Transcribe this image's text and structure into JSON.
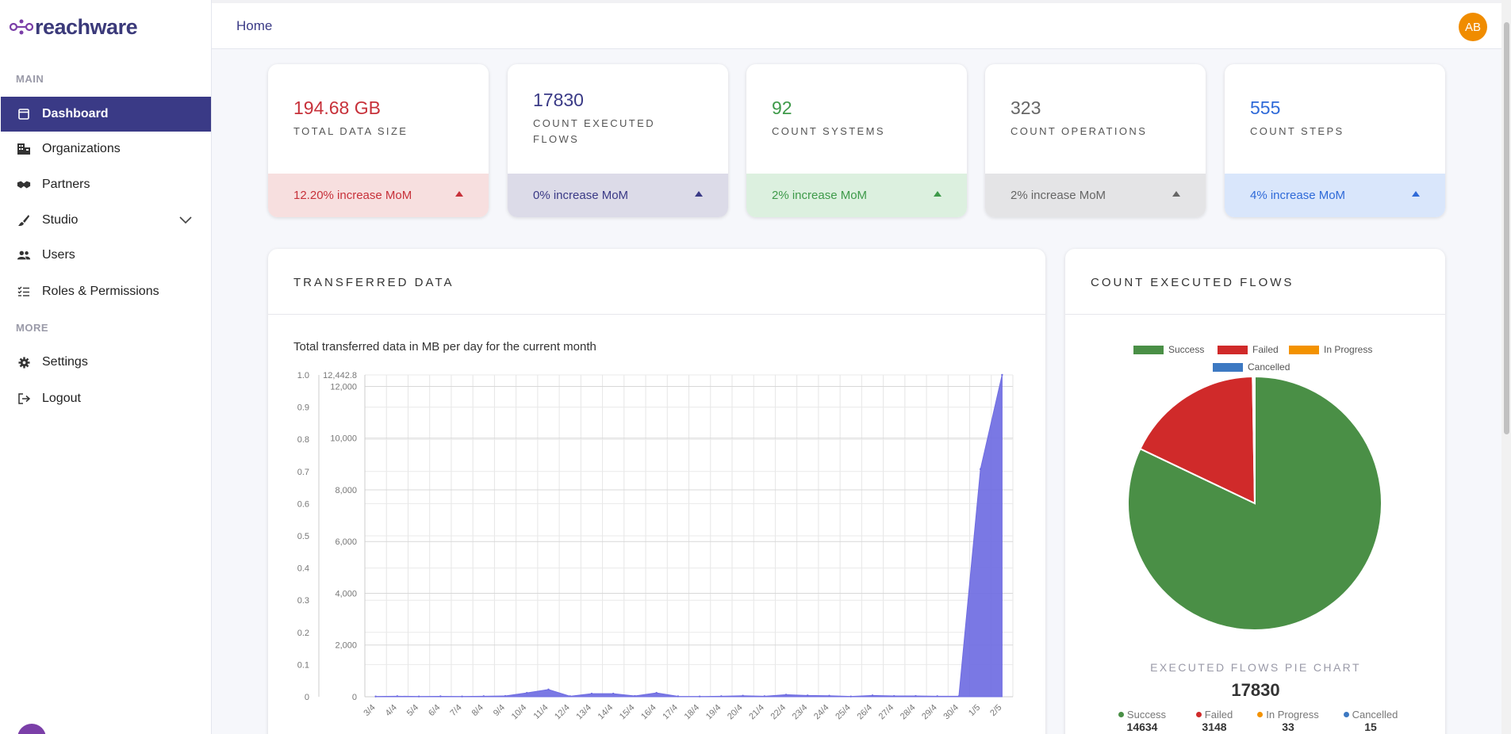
{
  "brand": {
    "name": "reachware"
  },
  "sidebar": {
    "section_main": "MAIN",
    "section_more": "MORE",
    "items": [
      {
        "label": "Dashboard",
        "icon": "dashboard-icon"
      },
      {
        "label": "Organizations",
        "icon": "building-icon"
      },
      {
        "label": "Partners",
        "icon": "handshake-icon"
      },
      {
        "label": "Studio",
        "icon": "brush-icon"
      },
      {
        "label": "Users",
        "icon": "users-icon"
      },
      {
        "label": "Roles & Permissions",
        "icon": "checklist-icon"
      },
      {
        "label": "Settings",
        "icon": "gear-icon"
      },
      {
        "label": "Logout",
        "icon": "logout-icon"
      }
    ]
  },
  "header": {
    "breadcrumb": "Home",
    "user_initials": "AB"
  },
  "kpis": [
    {
      "value": "194.68 GB",
      "label": "TOTAL DATA SIZE",
      "change": "12.20% increase MoM",
      "color": "#c7313a",
      "bg": "#f7dfdf"
    },
    {
      "value": "17830",
      "label": "COUNT EXECUTED FLOWS",
      "change": "0% increase MoM",
      "color": "#3a3a86",
      "bg": "#dcdbe8"
    },
    {
      "value": "92",
      "label": "COUNT SYSTEMS",
      "change": "2% increase MoM",
      "color": "#3e9a4a",
      "bg": "#dcf0df"
    },
    {
      "value": "323",
      "label": "COUNT OPERATIONS",
      "change": "2% increase MoM",
      "color": "#666666",
      "bg": "#e4e4e6"
    },
    {
      "value": "555",
      "label": "COUNT STEPS",
      "change": "4% increase MoM",
      "color": "#2f6ad8",
      "bg": "#d9e6fb"
    }
  ],
  "transfer_panel": {
    "title": "TRANSFERRED DATA",
    "subtitle": "Total transferred data in MB per day for the current month"
  },
  "flows_panel": {
    "title": "COUNT EXECUTED FLOWS",
    "caption": "EXECUTED FLOWS PIE CHART",
    "total": "17830",
    "stats": [
      {
        "label": "Success",
        "value": "14634",
        "color": "#4a8f46"
      },
      {
        "label": "Failed",
        "value": "3148",
        "color": "#d02a2a"
      },
      {
        "label": "In Progress",
        "value": "33",
        "color": "#f39200"
      },
      {
        "label": "Cancelled",
        "value": "15",
        "color": "#3d79c2"
      }
    ]
  },
  "chart_data": [
    {
      "type": "area",
      "title": "",
      "x": [
        "3/4",
        "4/4",
        "5/4",
        "6/4",
        "7/4",
        "8/4",
        "9/4",
        "10/4",
        "11/4",
        "12/4",
        "13/4",
        "14/4",
        "15/4",
        "16/4",
        "17/4",
        "18/4",
        "19/4",
        "20/4",
        "21/4",
        "22/4",
        "23/4",
        "24/4",
        "25/4",
        "26/4",
        "27/4",
        "28/4",
        "29/4",
        "30/4",
        "1/5",
        "2/5"
      ],
      "series": [
        {
          "values": [
            10,
            20,
            10,
            15,
            10,
            20,
            30,
            150,
            280,
            20,
            120,
            120,
            30,
            150,
            15,
            10,
            20,
            40,
            20,
            80,
            50,
            40,
            10,
            50,
            30,
            30,
            20,
            20,
            8800,
            12442.8
          ],
          "color": "#6f6ce2"
        }
      ],
      "y_left_ticks": [
        "0",
        "0.1",
        "0.2",
        "0.3",
        "0.4",
        "0.5",
        "0.6",
        "0.7",
        "0.8",
        "0.9",
        "1.0"
      ],
      "y_right_ticks": [
        "0",
        "2,000",
        "4,000",
        "6,000",
        "8,000",
        "10,000",
        "12,000"
      ],
      "y_max_label": "12,442.8",
      "ylim": [
        0,
        12442.8
      ],
      "grid": true
    },
    {
      "type": "pie",
      "title": "",
      "categories": [
        "Success",
        "Failed",
        "In Progress",
        "Cancelled"
      ],
      "values": [
        14634,
        3148,
        33,
        15
      ],
      "colors": [
        "#4a8f46",
        "#d02a2a",
        "#f39200",
        "#3d79c2"
      ],
      "legend": "top"
    }
  ]
}
